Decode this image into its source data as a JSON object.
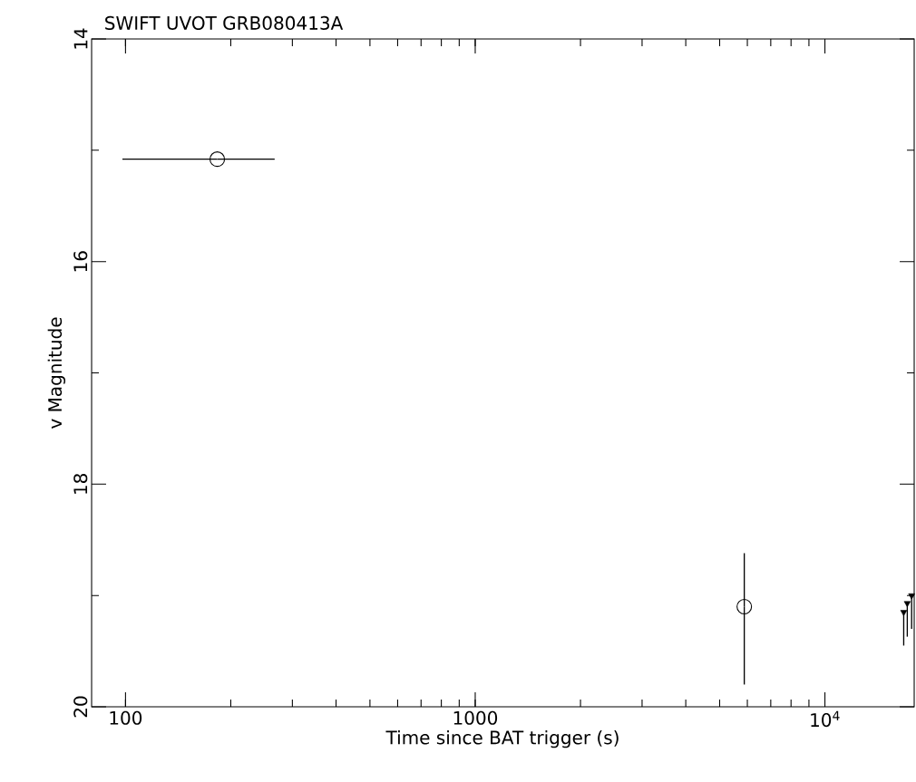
{
  "chart_data": {
    "type": "scatter",
    "title": "SWIFT UVOT GRB080413A",
    "xlabel": "Time since BAT trigger (s)",
    "ylabel": "v Magnitude",
    "log": "x",
    "xlim": [
      80,
      18000
    ],
    "ylim": [
      20,
      14
    ],
    "xticks": [
      100,
      1000,
      {
        "value": 10000,
        "label": "10$^{4}$"
      }
    ],
    "yticks": [
      14,
      16,
      18,
      20
    ],
    "grid": false,
    "series": [
      {
        "color": "#000000",
        "marker": "circle",
        "x": [
          183,
          5880
        ],
        "values": [
          15.08,
          19.1
        ],
        "xerrors": [
          [
            98,
            267
          ],
          null
        ],
        "errors": [
          null,
          [
            18.62,
            19.8
          ]
        ]
      },
      {
        "color": "#000000",
        "marker": "triangle",
        "x": [
          16800,
          17200,
          17700
        ],
        "values": [
          19.15,
          19.07,
          19.0
        ],
        "errors": [
          [
            19.15,
            19.45
          ],
          [
            19.07,
            19.37
          ],
          [
            19.0,
            19.3
          ]
        ]
      }
    ]
  }
}
